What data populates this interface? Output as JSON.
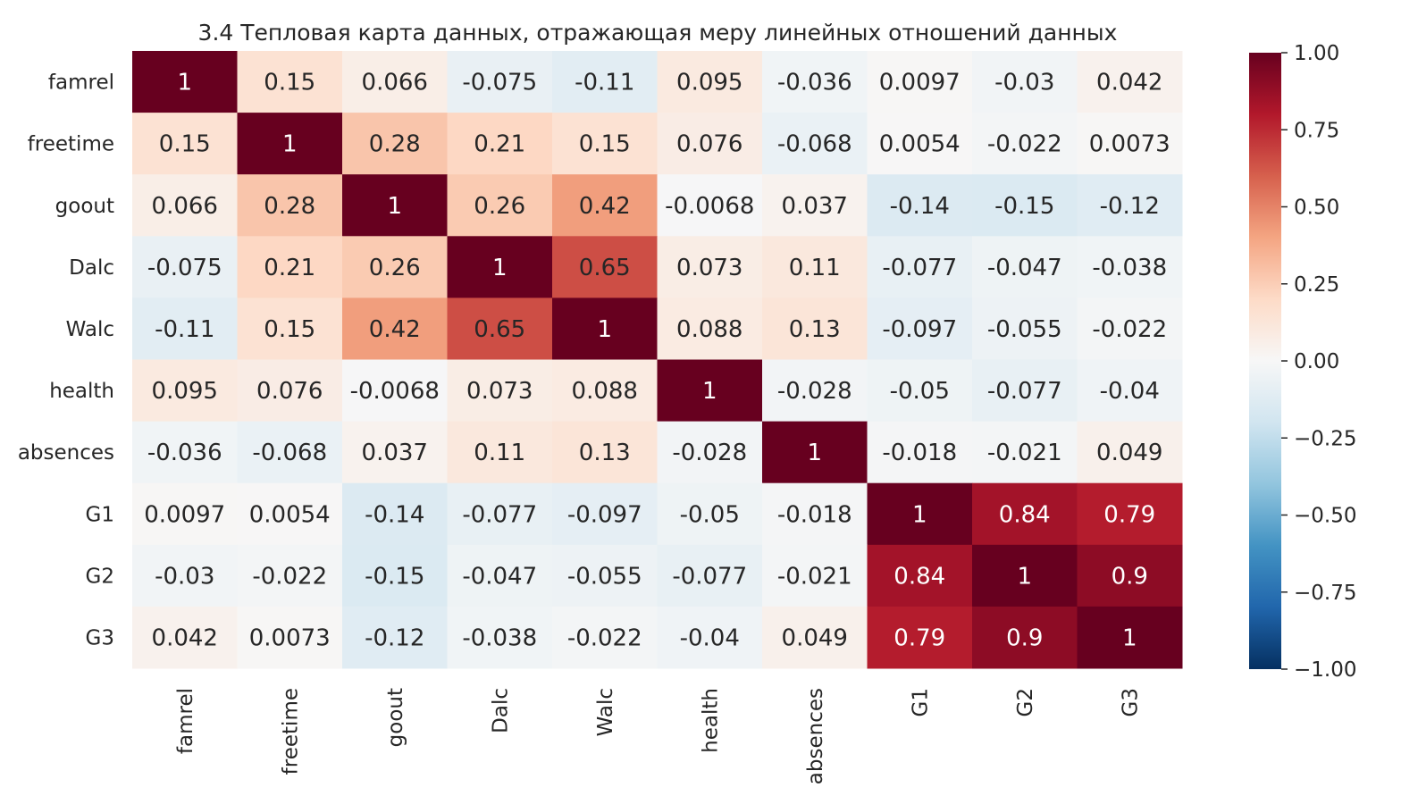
{
  "chart_data": {
    "type": "heatmap",
    "title": "3.4 Тепловая карта данных, отражающая меру линейных отношений данных",
    "x_labels": [
      "famrel",
      "freetime",
      "goout",
      "Dalc",
      "Walc",
      "health",
      "absences",
      "G1",
      "G2",
      "G3"
    ],
    "y_labels": [
      "famrel",
      "freetime",
      "goout",
      "Dalc",
      "Walc",
      "health",
      "absences",
      "G1",
      "G2",
      "G3"
    ],
    "values": [
      [
        1,
        0.15,
        0.066,
        -0.075,
        -0.11,
        0.095,
        -0.036,
        0.0097,
        -0.03,
        0.042
      ],
      [
        0.15,
        1,
        0.28,
        0.21,
        0.15,
        0.076,
        -0.068,
        0.0054,
        -0.022,
        0.0073
      ],
      [
        0.066,
        0.28,
        1,
        0.26,
        0.42,
        -0.0068,
        0.037,
        -0.14,
        -0.15,
        -0.12
      ],
      [
        -0.075,
        0.21,
        0.26,
        1,
        0.65,
        0.073,
        0.11,
        -0.077,
        -0.047,
        -0.038
      ],
      [
        -0.11,
        0.15,
        0.42,
        0.65,
        1,
        0.088,
        0.13,
        -0.097,
        -0.055,
        -0.022
      ],
      [
        0.095,
        0.076,
        -0.0068,
        0.073,
        0.088,
        1,
        -0.028,
        -0.05,
        -0.077,
        -0.04
      ],
      [
        -0.036,
        -0.068,
        0.037,
        0.11,
        0.13,
        -0.028,
        1,
        -0.018,
        -0.021,
        0.049
      ],
      [
        0.0097,
        0.0054,
        -0.14,
        -0.077,
        -0.097,
        -0.05,
        -0.018,
        1,
        0.84,
        0.79
      ],
      [
        -0.03,
        -0.022,
        -0.15,
        -0.047,
        -0.055,
        -0.077,
        -0.021,
        0.84,
        1,
        0.9
      ],
      [
        0.042,
        0.0073,
        -0.12,
        -0.038,
        -0.022,
        -0.04,
        0.049,
        0.79,
        0.9,
        1
      ]
    ],
    "annotations": [
      [
        "1",
        "0.15",
        "0.066",
        "-0.075",
        "-0.11",
        "0.095",
        "-0.036",
        "0.0097",
        "-0.03",
        "0.042"
      ],
      [
        "0.15",
        "1",
        "0.28",
        "0.21",
        "0.15",
        "0.076",
        "-0.068",
        "0.0054",
        "-0.022",
        "0.0073"
      ],
      [
        "0.066",
        "0.28",
        "1",
        "0.26",
        "0.42",
        "-0.0068",
        "0.037",
        "-0.14",
        "-0.15",
        "-0.12"
      ],
      [
        "-0.075",
        "0.21",
        "0.26",
        "1",
        "0.65",
        "0.073",
        "0.11",
        "-0.077",
        "-0.047",
        "-0.038"
      ],
      [
        "-0.11",
        "0.15",
        "0.42",
        "0.65",
        "1",
        "0.088",
        "0.13",
        "-0.097",
        "-0.055",
        "-0.022"
      ],
      [
        "0.095",
        "0.076",
        "-0.0068",
        "0.073",
        "0.088",
        "1",
        "-0.028",
        "-0.05",
        "-0.077",
        "-0.04"
      ],
      [
        "-0.036",
        "-0.068",
        "0.037",
        "0.11",
        "0.13",
        "-0.028",
        "1",
        "-0.018",
        "-0.021",
        "0.049"
      ],
      [
        "0.0097",
        "0.0054",
        "-0.14",
        "-0.077",
        "-0.097",
        "-0.05",
        "-0.018",
        "1",
        "0.84",
        "0.79"
      ],
      [
        "-0.03",
        "-0.022",
        "-0.15",
        "-0.047",
        "-0.055",
        "-0.077",
        "-0.021",
        "0.84",
        "1",
        "0.9"
      ],
      [
        "0.042",
        "0.0073",
        "-0.12",
        "-0.038",
        "-0.022",
        "-0.04",
        "0.049",
        "0.79",
        "0.9",
        "1"
      ]
    ],
    "colormap": "RdBu_r",
    "vmin": -1,
    "vmax": 1,
    "colorbar_ticks": [
      1.0,
      0.75,
      0.5,
      0.25,
      0.0,
      -0.25,
      -0.5,
      -0.75,
      -1.0
    ],
    "colorbar_tick_labels": [
      "1.00",
      "0.75",
      "0.50",
      "0.25",
      "0.00",
      "−0.25",
      "−0.50",
      "−0.75",
      "−1.00"
    ],
    "colors": {
      "stops": [
        "#053061",
        "#2166ac",
        "#4393c3",
        "#92c5de",
        "#d1e5f0",
        "#f7f7f7",
        "#fddbc7",
        "#f4a582",
        "#d6604d",
        "#b2182b",
        "#67001f"
      ],
      "text_dark": "#262626",
      "text_light": "#ffffff"
    }
  }
}
